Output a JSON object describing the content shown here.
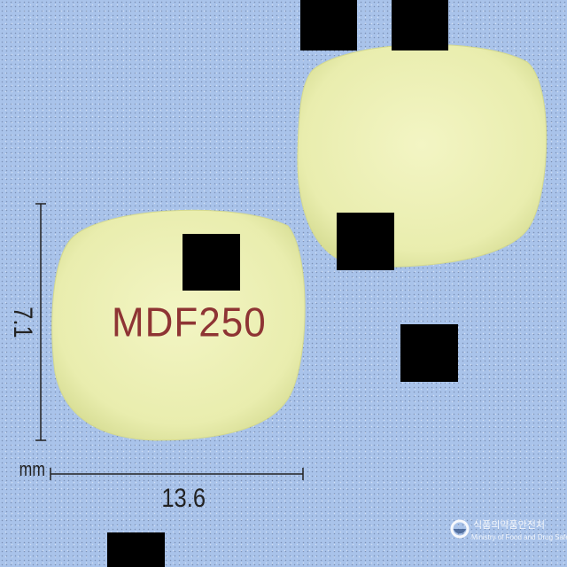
{
  "image": {
    "background_color": "#a9c3ea",
    "tablet_color": "#eef0b8",
    "imprint_color": "#8e3434"
  },
  "tablet_front": {
    "imprint": "MDF250"
  },
  "tablet_back": {
    "imprint": ""
  },
  "dimensions": {
    "width_label": "13.6",
    "height_label": "7.1",
    "unit_label": "mm"
  },
  "watermark": {
    "korean_text": "식품의약품안전처",
    "english_text": "Ministry of Food and Drug Safety",
    "emblem_icon": "government-emblem-icon"
  }
}
